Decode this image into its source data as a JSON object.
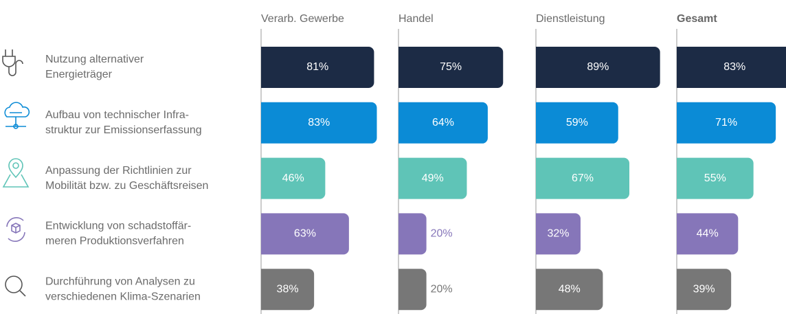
{
  "chart_data": {
    "type": "bar",
    "categories": [
      [
        "Nutzung alternativer",
        "Energieträger"
      ],
      [
        "Aufbau von technischer Infra-",
        "struktur zur Emissionserfassung"
      ],
      [
        "Anpassung der Richtlinien zur",
        "Mobilität bzw. zu Geschäftsreisen"
      ],
      [
        "Entwicklung von schadstoffär-",
        "meren Produktionsverfahren"
      ],
      [
        "Durchführung von Analysen zu",
        "verschiedenen Klima-Szenarien"
      ]
    ],
    "colors": [
      "#1c2b45",
      "#0b8bd6",
      "#5fc4b7",
      "#8676b9",
      "#777777"
    ],
    "xlim": [
      0,
      100
    ],
    "series": [
      {
        "name": "Verarb. Gewerbe",
        "values": [
          81,
          83,
          46,
          63,
          38
        ],
        "value_labels": [
          "81%",
          "83%",
          "46%",
          "63%",
          "38%"
        ]
      },
      {
        "name": "Handel",
        "values": [
          75,
          64,
          49,
          20,
          20
        ],
        "value_labels": [
          "75%",
          "64%",
          "49%",
          "20%",
          "20%"
        ]
      },
      {
        "name": "Dienstleistung",
        "values": [
          89,
          59,
          67,
          32,
          48
        ],
        "value_labels": [
          "89%",
          "59%",
          "67%",
          "32%",
          "48%"
        ]
      },
      {
        "name": "Gesamt",
        "values": [
          83,
          71,
          55,
          44,
          39
        ],
        "value_labels": [
          "83%",
          "71%",
          "55%",
          "44%",
          "39%"
        ]
      }
    ]
  }
}
